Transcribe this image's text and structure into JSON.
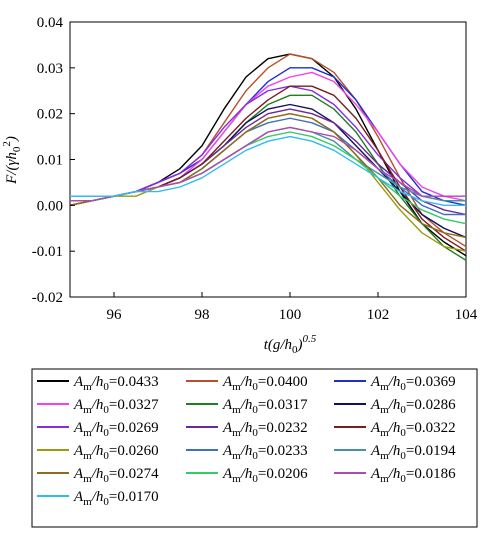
{
  "chart_data": {
    "type": "line",
    "xlabel": "t(g/h0)^0.5",
    "ylabel": "F/(γh0^2)",
    "xlim": [
      95,
      104
    ],
    "ylim": [
      -0.02,
      0.04
    ],
    "xticks": [
      96,
      98,
      100,
      102,
      104
    ],
    "yticks": [
      -0.02,
      -0.01,
      0.0,
      0.01,
      0.02,
      0.03,
      0.04
    ],
    "xtick_labels": [
      "96",
      "98",
      "100",
      "102",
      "104"
    ],
    "ytick_labels": [
      "-0.02",
      "-0.01",
      "0.00",
      "0.01",
      "0.02",
      "0.03",
      "0.04"
    ],
    "grid": false,
    "legend_position": "bottom",
    "legend_columns": 3,
    "x": [
      95.0,
      95.5,
      96.0,
      96.5,
      97.0,
      97.5,
      98.0,
      98.5,
      99.0,
      99.5,
      100.0,
      100.5,
      101.0,
      101.5,
      102.0,
      102.5,
      103.0,
      103.5,
      104.0
    ],
    "series": [
      {
        "name": "Am/h0=0.0433",
        "color": "#000000",
        "values": [
          0.0,
          0.001,
          0.002,
          0.003,
          0.005,
          0.008,
          0.013,
          0.021,
          0.028,
          0.032,
          0.033,
          0.032,
          0.028,
          0.021,
          0.012,
          0.003,
          -0.004,
          -0.008,
          -0.011
        ]
      },
      {
        "name": "Am/h0=0.0400",
        "color": "#b5502a",
        "values": [
          0.0,
          0.001,
          0.002,
          0.003,
          0.005,
          0.007,
          0.011,
          0.018,
          0.025,
          0.03,
          0.033,
          0.032,
          0.029,
          0.023,
          0.015,
          0.006,
          -0.002,
          -0.006,
          -0.009
        ]
      },
      {
        "name": "Am/h0=0.0369",
        "color": "#1f2fd0",
        "values": [
          0.001,
          0.001,
          0.002,
          0.003,
          0.005,
          0.007,
          0.01,
          0.016,
          0.022,
          0.027,
          0.03,
          0.03,
          0.028,
          0.023,
          0.016,
          0.009,
          0.003,
          0.001,
          0.0
        ]
      },
      {
        "name": "Am/h0=0.0327",
        "color": "#ee44ee",
        "values": [
          0.001,
          0.001,
          0.002,
          0.003,
          0.004,
          0.006,
          0.01,
          0.016,
          0.022,
          0.026,
          0.028,
          0.029,
          0.027,
          0.022,
          0.016,
          0.009,
          0.004,
          0.002,
          0.001
        ]
      },
      {
        "name": "Am/h0=0.0317",
        "color": "#1f7f1f",
        "values": [
          0.001,
          0.001,
          0.002,
          0.003,
          0.004,
          0.006,
          0.009,
          0.013,
          0.018,
          0.022,
          0.024,
          0.024,
          0.021,
          0.016,
          0.009,
          0.002,
          -0.004,
          -0.009,
          -0.012
        ]
      },
      {
        "name": "Am/h0=0.0286",
        "color": "#101060",
        "values": [
          0.0,
          0.001,
          0.002,
          0.003,
          0.004,
          0.006,
          0.009,
          0.013,
          0.018,
          0.021,
          0.022,
          0.021,
          0.018,
          0.013,
          0.008,
          0.003,
          -0.002,
          -0.005,
          -0.007
        ]
      },
      {
        "name": "Am/h0=0.0269",
        "color": "#8a2be2",
        "values": [
          0.001,
          0.001,
          0.002,
          0.003,
          0.005,
          0.007,
          0.011,
          0.017,
          0.022,
          0.025,
          0.026,
          0.025,
          0.022,
          0.017,
          0.011,
          0.006,
          0.002,
          0.001,
          0.001
        ]
      },
      {
        "name": "Am/h0=0.0232",
        "color": "#6a2a9a",
        "values": [
          0.0,
          0.001,
          0.002,
          0.003,
          0.004,
          0.006,
          0.009,
          0.013,
          0.017,
          0.02,
          0.021,
          0.02,
          0.018,
          0.014,
          0.009,
          0.005,
          0.001,
          -0.001,
          -0.002
        ]
      },
      {
        "name": "Am/h0=0.0322",
        "color": "#7a1f1f",
        "values": [
          0.001,
          0.001,
          0.002,
          0.003,
          0.004,
          0.006,
          0.009,
          0.014,
          0.019,
          0.023,
          0.026,
          0.026,
          0.024,
          0.019,
          0.012,
          0.004,
          -0.003,
          -0.007,
          -0.01
        ]
      },
      {
        "name": "Am/h0=0.0260",
        "color": "#9a9a10",
        "values": [
          0.0,
          0.001,
          0.002,
          0.002,
          0.004,
          0.005,
          0.008,
          0.012,
          0.016,
          0.019,
          0.02,
          0.019,
          0.016,
          0.011,
          0.005,
          -0.001,
          -0.006,
          -0.009,
          -0.01
        ]
      },
      {
        "name": "Am/h0=0.0233",
        "color": "#3f6fbf",
        "values": [
          0.001,
          0.001,
          0.002,
          0.003,
          0.004,
          0.005,
          0.008,
          0.012,
          0.016,
          0.018,
          0.019,
          0.018,
          0.016,
          0.012,
          0.008,
          0.004,
          0.0,
          -0.002,
          -0.002
        ]
      },
      {
        "name": "Am/h0=0.0194",
        "color": "#4a90a4",
        "values": [
          0.002,
          0.002,
          0.002,
          0.003,
          0.004,
          0.005,
          0.007,
          0.01,
          0.013,
          0.016,
          0.017,
          0.016,
          0.014,
          0.01,
          0.007,
          0.004,
          0.002,
          0.001,
          0.001
        ]
      },
      {
        "name": "Am/h0=0.0274",
        "color": "#8b6b1e",
        "values": [
          0.0,
          0.001,
          0.002,
          0.003,
          0.004,
          0.005,
          0.008,
          0.012,
          0.016,
          0.019,
          0.02,
          0.019,
          0.016,
          0.011,
          0.006,
          0.0,
          -0.004,
          -0.006,
          -0.007
        ]
      },
      {
        "name": "Am/h0=0.0206",
        "color": "#33cc66",
        "values": [
          0.001,
          0.001,
          0.002,
          0.003,
          0.004,
          0.005,
          0.007,
          0.01,
          0.013,
          0.015,
          0.016,
          0.015,
          0.013,
          0.01,
          0.006,
          0.002,
          -0.001,
          -0.003,
          -0.004
        ]
      },
      {
        "name": "Am/h0=0.0186",
        "color": "#b04ab0",
        "values": [
          0.001,
          0.001,
          0.002,
          0.003,
          0.004,
          0.005,
          0.007,
          0.01,
          0.013,
          0.016,
          0.017,
          0.016,
          0.015,
          0.012,
          0.008,
          0.005,
          0.002,
          0.002,
          0.002
        ]
      },
      {
        "name": "Am/h0=0.0170",
        "color": "#33bbee",
        "values": [
          0.002,
          0.002,
          0.002,
          0.003,
          0.003,
          0.004,
          0.006,
          0.009,
          0.012,
          0.014,
          0.015,
          0.014,
          0.012,
          0.009,
          0.006,
          0.003,
          0.001,
          0.0,
          0.0
        ]
      }
    ]
  }
}
